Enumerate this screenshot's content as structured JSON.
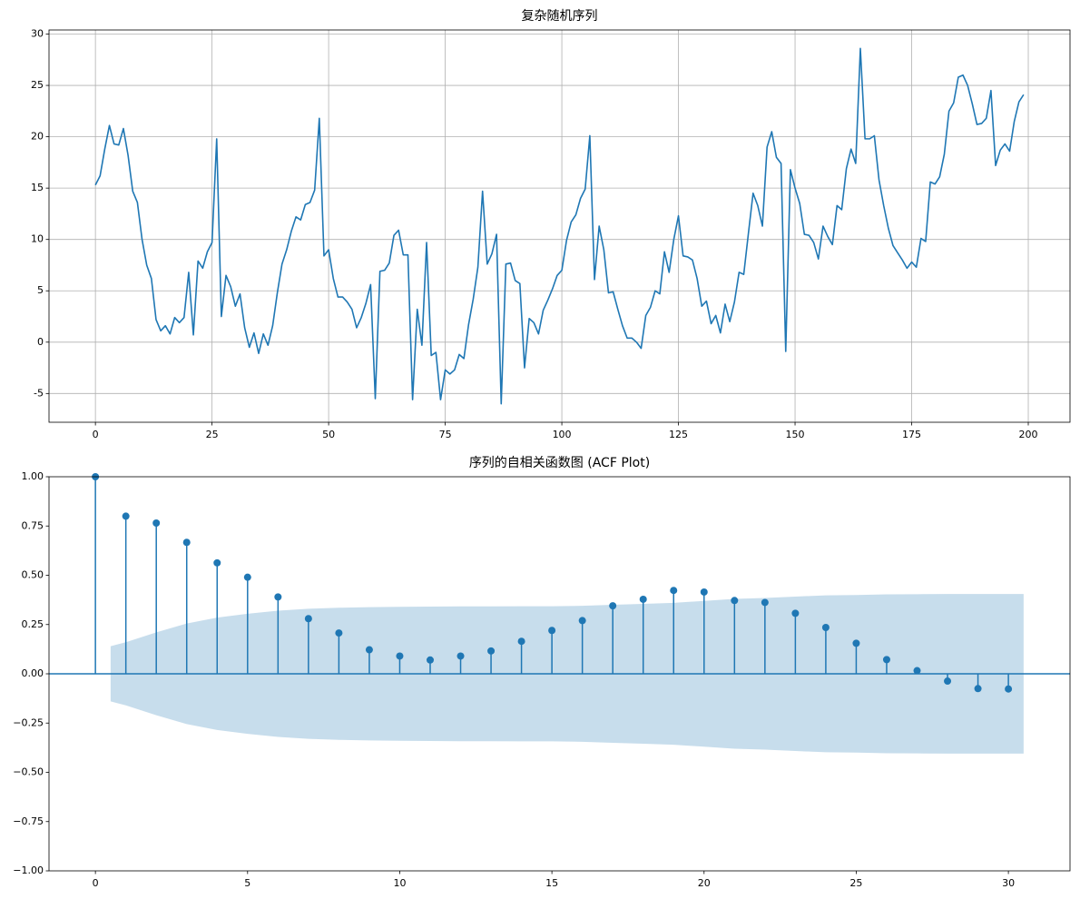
{
  "chart_data": [
    {
      "type": "line",
      "title": "复杂随机序列",
      "color": "#1f77b4",
      "grid": true,
      "x": [
        0,
        1,
        2,
        3,
        4,
        5,
        6,
        7,
        8,
        9,
        10,
        11,
        12,
        13,
        14,
        15,
        16,
        17,
        18,
        19,
        20,
        21,
        22,
        23,
        24,
        25,
        26,
        27,
        28,
        29,
        30,
        31,
        32,
        33,
        34,
        35,
        36,
        37,
        38,
        39,
        40,
        41,
        42,
        43,
        44,
        45,
        46,
        47,
        48,
        49,
        50,
        51,
        52,
        53,
        54,
        55,
        56,
        57,
        58,
        59,
        60,
        61,
        62,
        63,
        64,
        65,
        66,
        67,
        68,
        69,
        70,
        71,
        72,
        73,
        74,
        75,
        76,
        77,
        78,
        79,
        80,
        81,
        82,
        83,
        84,
        85,
        86,
        87,
        88,
        89,
        90,
        91,
        92,
        93,
        94,
        95,
        96,
        97,
        98,
        99,
        100,
        101,
        102,
        103,
        104,
        105,
        106,
        107,
        108,
        109,
        110,
        111,
        112,
        113,
        114,
        115,
        116,
        117,
        118,
        119,
        120,
        121,
        122,
        123,
        124,
        125,
        126,
        127,
        128,
        129,
        130,
        131,
        132,
        133,
        134,
        135,
        136,
        137,
        138,
        139,
        140,
        141,
        142,
        143,
        144,
        145,
        146,
        147,
        148,
        149,
        150,
        151,
        152,
        153,
        154,
        155,
        156,
        157,
        158,
        159,
        160,
        161,
        162,
        163,
        164,
        165,
        166,
        167,
        168,
        169,
        170,
        171,
        172,
        173,
        174,
        175,
        176,
        177,
        178,
        179,
        180,
        181,
        182,
        183,
        184,
        185,
        186,
        187,
        188,
        189,
        190,
        191,
        192,
        193,
        194,
        195,
        196,
        197,
        198,
        199
      ],
      "values": [
        15.3,
        16.2,
        18.8,
        21.1,
        19.3,
        19.2,
        20.8,
        18.2,
        14.7,
        13.6,
        10,
        7.5,
        6.2,
        2.2,
        1.1,
        1.6,
        0.8,
        2.4,
        1.9,
        2.4,
        6.8,
        0.7,
        7.9,
        7.2,
        8.8,
        9.7,
        19.8,
        2.5,
        6.5,
        5.4,
        3.5,
        4.7,
        1.4,
        -0.5,
        0.9,
        -1.1,
        0.8,
        -0.3,
        1.6,
        4.8,
        7.6,
        9,
        10.8,
        12.2,
        11.9,
        13.4,
        13.6,
        14.8,
        21.8,
        8.4,
        9,
        6.2,
        4.4,
        4.4,
        3.9,
        3.2,
        1.4,
        2.4,
        3.8,
        5.6,
        -5.5,
        6.9,
        7,
        7.7,
        10.4,
        10.9,
        8.5,
        8.5,
        -5.6,
        3.2,
        -0.3,
        9.7,
        -1.3,
        -1,
        -5.6,
        -2.7,
        -3.1,
        -2.7,
        -1.2,
        -1.6,
        1.7,
        4.2,
        7.3,
        14.7,
        7.6,
        8.6,
        10.5,
        -6,
        7.6,
        7.7,
        6,
        5.7,
        -2.5,
        2.3,
        1.9,
        0.8,
        3.1,
        4.1,
        5.2,
        6.5,
        7,
        9.9,
        11.7,
        12.4,
        14,
        14.9,
        20.1,
        6.1,
        11.3,
        9,
        4.8,
        4.9,
        3.2,
        1.6,
        0.4,
        0.4,
        0,
        -0.6,
        2.6,
        3.4,
        5,
        4.7,
        8.8,
        6.8,
        10,
        12.3,
        8.4,
        8.3,
        8,
        6.2,
        3.5,
        4,
        1.8,
        2.6,
        0.9,
        3.7,
        2,
        3.9,
        6.8,
        6.6,
        10.6,
        14.5,
        13.3,
        11.3,
        19,
        20.5,
        18,
        17.4,
        -0.9,
        16.8,
        15,
        13.5,
        10.5,
        10.4,
        9.7,
        8.1,
        11.3,
        10.3,
        9.5,
        13.3,
        12.9,
        16.9,
        18.8,
        17.4,
        28.6,
        19.8,
        19.8,
        20.1,
        15.8,
        13.3,
        11.1,
        9.4,
        8.7,
        8,
        7.2,
        7.8,
        7.3,
        10.1,
        9.8,
        15.6,
        15.4,
        16.1,
        18.3,
        22.5,
        23.3,
        25.8,
        26,
        25,
        23.2,
        21.2,
        21.3,
        21.8,
        24.5,
        17.2,
        18.7,
        19.3,
        18.6,
        21.5,
        23.4,
        24.1
      ],
      "xlim": [
        -9.95,
        208.95
      ],
      "xticks": [
        0,
        25,
        50,
        75,
        100,
        125,
        150,
        175,
        200
      ],
      "ylim": [
        -7.8,
        30.4
      ],
      "yticks": [
        -5,
        0,
        5,
        10,
        15,
        20,
        25,
        30
      ]
    },
    {
      "type": "stem",
      "title": "序列的自相关函数图 (ACF Plot)",
      "color": "#1f77b4",
      "grid": false,
      "x": [
        0,
        1,
        2,
        3,
        4,
        5,
        6,
        7,
        8,
        9,
        10,
        11,
        12,
        13,
        14,
        15,
        16,
        17,
        18,
        19,
        20,
        21,
        22,
        23,
        24,
        25,
        26,
        27,
        28,
        29,
        30
      ],
      "values": [
        1,
        0.8,
        0.765,
        0.667,
        0.563,
        0.49,
        0.39,
        0.28,
        0.207,
        0.122,
        0.09,
        0.07,
        0.09,
        0.116,
        0.165,
        0.22,
        0.27,
        0.345,
        0.378,
        0.423,
        0.415,
        0.372,
        0.362,
        0.307,
        0.235,
        0.155,
        0.072,
        0.016,
        -0.037,
        -0.075,
        -0.077
      ],
      "confint": {
        "x": [
          0.5,
          1,
          2,
          3,
          4,
          5,
          6,
          7,
          8,
          9,
          10,
          11,
          12,
          13,
          14,
          15,
          16,
          17,
          18,
          19,
          20,
          21,
          22,
          23,
          24,
          25,
          26,
          27,
          28,
          29,
          30,
          30.5
        ],
        "upper": [
          0.14,
          0.16,
          0.21,
          0.255,
          0.285,
          0.305,
          0.32,
          0.33,
          0.335,
          0.338,
          0.34,
          0.341,
          0.342,
          0.342,
          0.343,
          0.343,
          0.345,
          0.35,
          0.355,
          0.36,
          0.37,
          0.38,
          0.385,
          0.392,
          0.398,
          0.4,
          0.403,
          0.404,
          0.405,
          0.405,
          0.405,
          0.405
        ],
        "lower": [
          -0.14,
          -0.16,
          -0.21,
          -0.255,
          -0.285,
          -0.305,
          -0.32,
          -0.33,
          -0.335,
          -0.338,
          -0.34,
          -0.341,
          -0.342,
          -0.342,
          -0.343,
          -0.343,
          -0.345,
          -0.35,
          -0.355,
          -0.36,
          -0.37,
          -0.38,
          -0.385,
          -0.392,
          -0.398,
          -0.4,
          -0.403,
          -0.404,
          -0.405,
          -0.405,
          -0.405,
          -0.405
        ]
      },
      "xlim": [
        -1.525,
        32.025
      ],
      "xticks": [
        0,
        5,
        10,
        15,
        20,
        25,
        30
      ],
      "ylim": [
        -1,
        1
      ],
      "yticks": [
        {
          "value": -1,
          "label": "−1.00"
        },
        {
          "value": -0.75,
          "label": "−0.75"
        },
        {
          "value": -0.5,
          "label": "−0.50"
        },
        {
          "value": -0.25,
          "label": "−0.25"
        },
        {
          "value": 0,
          "label": "0.00"
        },
        {
          "value": 0.25,
          "label": "0.25"
        },
        {
          "value": 0.5,
          "label": "0.50"
        },
        {
          "value": 0.75,
          "label": "0.75"
        },
        {
          "value": 1,
          "label": "1.00"
        }
      ]
    }
  ]
}
